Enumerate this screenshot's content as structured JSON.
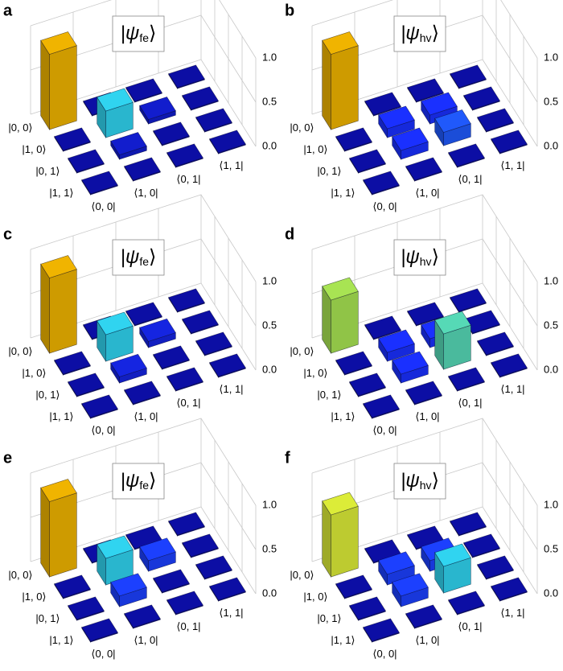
{
  "chart_data": [
    {
      "type": "bar3d",
      "panel": "a",
      "title": [
        "|ψ",
        "fe",
        "⟩"
      ],
      "rows": [
        "|0, 0⟩",
        "|1, 0⟩",
        "|0, 1⟩",
        "|1, 1⟩"
      ],
      "columns": [
        "⟨0, 0|",
        "⟨1, 0|",
        "⟨0, 1|",
        "⟨1, 1|"
      ],
      "values": [
        [
          0.85,
          0.01,
          0.01,
          0.01
        ],
        [
          0.01,
          0.3,
          0.05,
          0.01
        ],
        [
          0.01,
          0.05,
          0.01,
          0.01
        ],
        [
          0.01,
          0.01,
          0.01,
          0.01
        ]
      ],
      "zlim": [
        0,
        1
      ],
      "zticks": [
        {
          "value": 0,
          "label": "0.0"
        },
        0.5,
        {
          "value": 1,
          "label": "1.0"
        }
      ],
      "colormap": [
        {
          "value": 0,
          "color": "#0a0a9a"
        },
        {
          "value": 0.1,
          "color": "#1a30ff"
        },
        {
          "value": 0.3,
          "color": "#30d4f0"
        },
        {
          "value": 0.55,
          "color": "#8ee060"
        },
        {
          "value": 0.7,
          "color": "#dcec38"
        },
        {
          "value": 0.85,
          "color": "#f0b400"
        }
      ]
    },
    {
      "type": "bar3d",
      "panel": "b",
      "title": [
        "|ψ",
        "hv",
        "⟩"
      ],
      "rows": [
        "|0, 0⟩",
        "|1, 0⟩",
        "|0, 1⟩",
        "|1, 1⟩"
      ],
      "columns": [
        "⟨0, 0|",
        "⟨1, 0|",
        "⟨0, 1|",
        "⟨1, 1|"
      ],
      "values": [
        [
          0.85,
          0.01,
          0.01,
          0.01
        ],
        [
          0.01,
          0.1,
          0.1,
          0.01
        ],
        [
          0.01,
          0.1,
          0.15,
          0.01
        ],
        [
          0.01,
          0.01,
          0.01,
          0.01
        ]
      ],
      "zlim": [
        0,
        1
      ],
      "zticks": [
        {
          "value": 0,
          "label": "0.0"
        },
        0.5,
        {
          "value": 1,
          "label": "1.0"
        }
      ],
      "colormap": [
        {
          "value": 0,
          "color": "#0a0a9a"
        },
        {
          "value": 0.1,
          "color": "#1a30ff"
        },
        {
          "value": 0.3,
          "color": "#30d4f0"
        },
        {
          "value": 0.55,
          "color": "#8ee060"
        },
        {
          "value": 0.7,
          "color": "#dcec38"
        },
        {
          "value": 0.85,
          "color": "#f0b400"
        }
      ]
    },
    {
      "type": "bar3d",
      "panel": "c",
      "title": [
        "|ψ",
        "fe",
        "⟩"
      ],
      "rows": [
        "|0, 0⟩",
        "|1, 0⟩",
        "|0, 1⟩",
        "|1, 1⟩"
      ],
      "columns": [
        "⟨0, 0|",
        "⟨1, 0|",
        "⟨0, 1|",
        "⟨1, 1|"
      ],
      "values": [
        [
          0.85,
          0.01,
          0.01,
          0.01
        ],
        [
          0.01,
          0.3,
          0.07,
          0.01
        ],
        [
          0.01,
          0.07,
          0.01,
          0.01
        ],
        [
          0.01,
          0.01,
          0.01,
          0.01
        ]
      ],
      "zlim": [
        0,
        1
      ],
      "zticks": [
        {
          "value": 0,
          "label": "0.0"
        },
        0.5,
        {
          "value": 1,
          "label": "1.0"
        }
      ],
      "colormap": [
        {
          "value": 0,
          "color": "#0a0a9a"
        },
        {
          "value": 0.1,
          "color": "#1a30ff"
        },
        {
          "value": 0.3,
          "color": "#30d4f0"
        },
        {
          "value": 0.55,
          "color": "#8ee060"
        },
        {
          "value": 0.7,
          "color": "#dcec38"
        },
        {
          "value": 0.85,
          "color": "#f0b400"
        }
      ]
    },
    {
      "type": "bar3d",
      "panel": "d",
      "title": [
        "|ψ",
        "hv",
        "⟩"
      ],
      "rows": [
        "|0, 0⟩",
        "|1, 0⟩",
        "|0, 1⟩",
        "|1, 1⟩"
      ],
      "columns": [
        "⟨0, 0|",
        "⟨1, 0|",
        "⟨0, 1|",
        "⟨1, 1|"
      ],
      "values": [
        [
          0.6,
          0.01,
          0.01,
          0.01
        ],
        [
          0.01,
          0.1,
          0.1,
          0.01
        ],
        [
          0.01,
          0.1,
          0.4,
          0.01
        ],
        [
          0.01,
          0.01,
          0.01,
          0.01
        ]
      ],
      "zlim": [
        0,
        1
      ],
      "zticks": [
        {
          "value": 0,
          "label": "0.0"
        },
        0.5,
        {
          "value": 1,
          "label": "1.0"
        }
      ],
      "colormap": [
        {
          "value": 0,
          "color": "#0a0a9a"
        },
        {
          "value": 0.1,
          "color": "#1a30ff"
        },
        {
          "value": 0.3,
          "color": "#30d4f0"
        },
        {
          "value": 0.55,
          "color": "#8ee060"
        },
        {
          "value": 0.7,
          "color": "#dcec38"
        },
        {
          "value": 0.85,
          "color": "#f0b400"
        }
      ]
    },
    {
      "type": "bar3d",
      "panel": "e",
      "title": [
        "|ψ",
        "fe",
        "⟩"
      ],
      "rows": [
        "|0, 0⟩",
        "|1, 0⟩",
        "|0, 1⟩",
        "|1, 1⟩"
      ],
      "columns": [
        "⟨0, 0|",
        "⟨1, 0|",
        "⟨0, 1|",
        "⟨1, 1|"
      ],
      "values": [
        [
          0.85,
          0.01,
          0.01,
          0.01
        ],
        [
          0.01,
          0.3,
          0.12,
          0.01
        ],
        [
          0.01,
          0.12,
          0.01,
          0.01
        ],
        [
          0.01,
          0.01,
          0.01,
          0.01
        ]
      ],
      "zlim": [
        0,
        1
      ],
      "zticks": [
        {
          "value": 0,
          "label": "0.0"
        },
        0.5,
        {
          "value": 1,
          "label": "1.0"
        }
      ],
      "colormap": [
        {
          "value": 0,
          "color": "#0a0a9a"
        },
        {
          "value": 0.1,
          "color": "#1a30ff"
        },
        {
          "value": 0.3,
          "color": "#30d4f0"
        },
        {
          "value": 0.55,
          "color": "#8ee060"
        },
        {
          "value": 0.7,
          "color": "#dcec38"
        },
        {
          "value": 0.85,
          "color": "#f0b400"
        }
      ]
    },
    {
      "type": "bar3d",
      "panel": "f",
      "title": [
        "|ψ",
        "hv",
        "⟩"
      ],
      "rows": [
        "|0, 0⟩",
        "|1, 0⟩",
        "|0, 1⟩",
        "|1, 1⟩"
      ],
      "columns": [
        "⟨0, 0|",
        "⟨1, 0|",
        "⟨0, 1|",
        "⟨1, 1|"
      ],
      "values": [
        [
          0.7,
          0.01,
          0.01,
          0.01
        ],
        [
          0.01,
          0.12,
          0.12,
          0.01
        ],
        [
          0.01,
          0.12,
          0.3,
          0.01
        ],
        [
          0.01,
          0.01,
          0.01,
          0.01
        ]
      ],
      "zlim": [
        0,
        1
      ],
      "zticks": [
        {
          "value": 0,
          "label": "0.0"
        },
        0.5,
        {
          "value": 1,
          "label": "1.0"
        }
      ],
      "colormap": [
        {
          "value": 0,
          "color": "#0a0a9a"
        },
        {
          "value": 0.1,
          "color": "#1a30ff"
        },
        {
          "value": 0.3,
          "color": "#30d4f0"
        },
        {
          "value": 0.55,
          "color": "#8ee060"
        },
        {
          "value": 0.7,
          "color": "#dcec38"
        },
        {
          "value": 0.85,
          "color": "#f0b400"
        }
      ]
    }
  ]
}
